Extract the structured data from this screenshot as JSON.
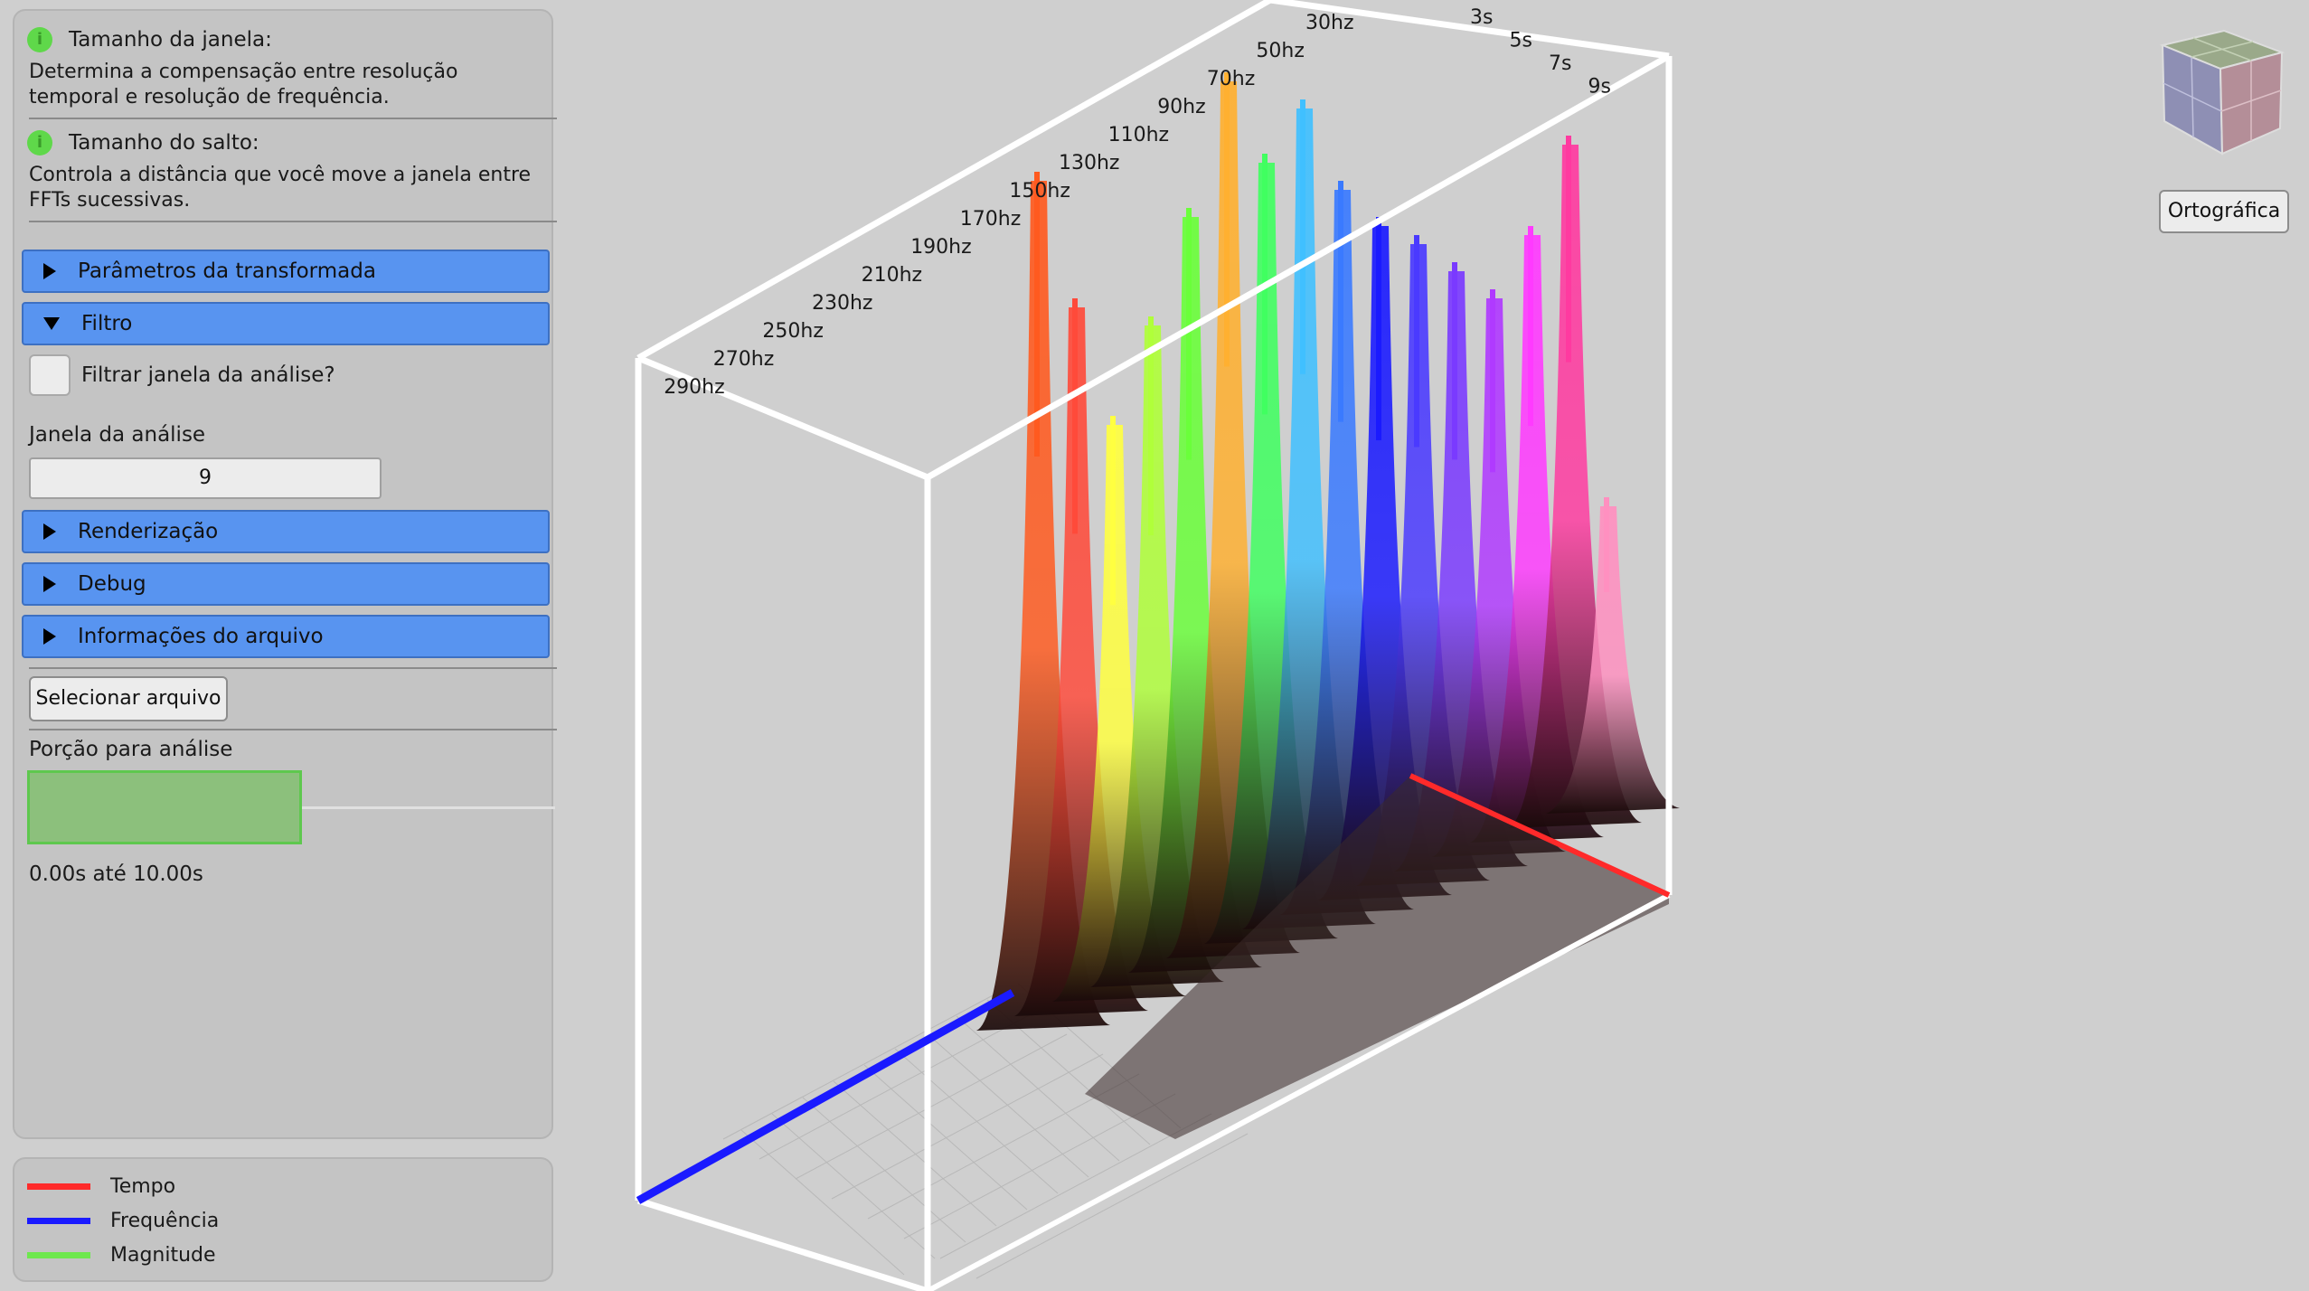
{
  "help": [
    {
      "title": "Tamanho da janela:",
      "text": "Determina a compensação entre resolução temporal e resolução de frequência."
    },
    {
      "title": "Tamanho do salto:",
      "text": "Controla a distância que você move a janela entre FFTs sucessivas."
    }
  ],
  "sections": {
    "transform": "Parâmetros da transformada",
    "filter": "Filtro",
    "render": "Renderização",
    "debug": "Debug",
    "fileinfo": "Informações do arquivo"
  },
  "filter": {
    "checkbox_label": "Filtrar janela da análise?",
    "window_label": "Janela da análise",
    "window_value": "9"
  },
  "select_file_button": "Selecionar arquivo",
  "portion": {
    "label": "Porção para análise",
    "range_text": "0.00s até 10.00s",
    "start_fraction": 0.0,
    "end_fraction": 0.52
  },
  "legend": [
    {
      "label": "Tempo",
      "color": "#ff2a2a"
    },
    {
      "label": "Frequência",
      "color": "#1a1aff"
    },
    {
      "label": "Magnitude",
      "color": "#6ee84e"
    }
  ],
  "view": {
    "projection_button": "Ortográfica"
  },
  "plot": {
    "freq_labels": [
      "30hz",
      "50hz",
      "70hz",
      "90hz",
      "110hz",
      "130hz",
      "150hz",
      "170hz",
      "190hz",
      "210hz",
      "230hz",
      "250hz",
      "270hz",
      "290hz"
    ],
    "time_labels": [
      "3s",
      "5s",
      "7s",
      "9s"
    ],
    "peaks": [
      {
        "color": "#ff5a1f"
      },
      {
        "color": "#ff4a3a"
      },
      {
        "color": "#ffff40"
      },
      {
        "color": "#b0ff3a"
      },
      {
        "color": "#6aff3a"
      },
      {
        "color": "#ffb030"
      },
      {
        "color": "#40ff60"
      },
      {
        "color": "#40c0ff"
      },
      {
        "color": "#3a7aff"
      },
      {
        "color": "#1a1aff"
      },
      {
        "color": "#4a3aff"
      },
      {
        "color": "#7a3aff"
      },
      {
        "color": "#b03aff"
      },
      {
        "color": "#ff3aff"
      },
      {
        "color": "#ff3aa0"
      },
      {
        "color": "#ff90c0"
      }
    ]
  }
}
